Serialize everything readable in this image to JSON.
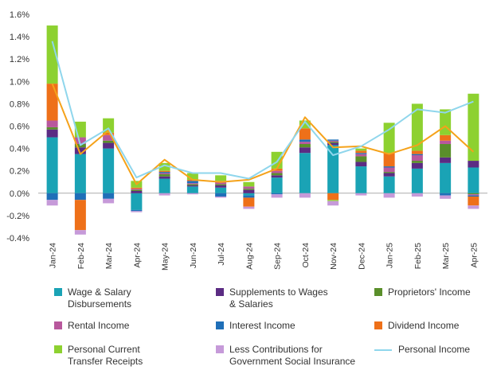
{
  "chart_data": {
    "type": "bar",
    "stacked": true,
    "title": "",
    "xlabel": "",
    "ylabel": "",
    "ylim": [
      -0.4,
      1.6
    ],
    "y_ticks": [
      -0.4,
      -0.2,
      0.0,
      0.2,
      0.4,
      0.6,
      0.8,
      1.0,
      1.2,
      1.4,
      1.6
    ],
    "y_tick_labels": [
      "-0.4%",
      "-0.2%",
      "0.0%",
      "0.2%",
      "0.4%",
      "0.6%",
      "0.8%",
      "1.0%",
      "1.2%",
      "1.4%",
      "1.6%"
    ],
    "categories": [
      "Jan-24",
      "Feb-24",
      "Mar-24",
      "Apr-24",
      "May-24",
      "Jun-24",
      "Jul-24",
      "Aug-24",
      "Sep-24",
      "Oct-24",
      "Nov-24",
      "Dec-24",
      "Jan-25",
      "Feb-25",
      "Mar-25",
      "Apr-25"
    ],
    "series": [
      {
        "name": "Wage & Salary Disbursements",
        "color": "#1aa3b5",
        "values": [
          0.5,
          0.35,
          0.4,
          -0.15,
          0.13,
          0.06,
          0.05,
          -0.02,
          0.14,
          0.36,
          0.43,
          0.24,
          0.15,
          0.22,
          0.27,
          0.23
        ]
      },
      {
        "name": "Supplements to Wages & Salaries",
        "color": "#5b2c83",
        "values": [
          0.07,
          0.06,
          0.05,
          0.02,
          0.02,
          0.01,
          0.02,
          0.03,
          0.02,
          0.05,
          0.02,
          0.04,
          0.03,
          0.05,
          0.05,
          0.06
        ]
      },
      {
        "name": "Proprietors' Income",
        "color": "#5a8f2b",
        "values": [
          0.02,
          0.03,
          0.02,
          0.01,
          0.02,
          0.01,
          0.01,
          0.01,
          0.02,
          0.03,
          0.01,
          0.05,
          0.01,
          0.02,
          0.12,
          -0.01
        ]
      },
      {
        "name": "Rental Income",
        "color": "#b8589d",
        "values": [
          0.06,
          0.06,
          0.05,
          0.01,
          0.01,
          0.01,
          0.02,
          0.02,
          0.02,
          0.02,
          0.01,
          0.02,
          0.04,
          0.05,
          0.03,
          -0.01
        ]
      },
      {
        "name": "Interest Income",
        "color": "#1f6fb8",
        "values": [
          -0.06,
          -0.06,
          -0.05,
          -0.01,
          0.01,
          0.02,
          -0.03,
          -0.02,
          -0.01,
          0.02,
          0.01,
          0.01,
          0.01,
          0.01,
          -0.02,
          -0.01
        ]
      },
      {
        "name": "Dividend Income",
        "color": "#ee7019",
        "values": [
          0.33,
          -0.27,
          0.02,
          0.01,
          0.01,
          0.01,
          0.01,
          -0.08,
          0.02,
          0.1,
          -0.06,
          0.02,
          0.12,
          0.03,
          0.05,
          -0.08
        ]
      },
      {
        "name": "Personal Current Transfer Receipts",
        "color": "#8dd130",
        "values": [
          0.52,
          0.14,
          0.13,
          0.06,
          0.07,
          0.06,
          0.05,
          0.04,
          0.15,
          0.07,
          -0.01,
          0.02,
          0.27,
          0.42,
          0.23,
          0.6
        ]
      },
      {
        "name": "Less Contributions for Government Social Insurance",
        "color": "#c69ad9",
        "values": [
          -0.05,
          -0.04,
          -0.04,
          -0.01,
          -0.02,
          -0.01,
          -0.01,
          -0.02,
          -0.03,
          -0.04,
          -0.04,
          -0.02,
          -0.04,
          -0.03,
          -0.03,
          -0.03
        ]
      }
    ],
    "lines": [
      {
        "name": "Personal Income",
        "color": "#8fd6ec",
        "values": [
          1.36,
          0.43,
          0.58,
          0.14,
          0.25,
          0.18,
          0.18,
          0.13,
          0.28,
          0.64,
          0.34,
          0.42,
          0.57,
          0.75,
          0.72,
          0.82
        ]
      },
      {
        "name": "",
        "color": "#f5a21a",
        "values": [
          0.98,
          0.35,
          0.56,
          0.08,
          0.3,
          0.12,
          0.1,
          0.12,
          0.22,
          0.68,
          0.41,
          0.42,
          0.35,
          0.43,
          0.6,
          0.37
        ]
      }
    ],
    "legend": [
      {
        "label": "Wage & Salary Disbursements",
        "kind": "swatch",
        "color": "#1aa3b5"
      },
      {
        "label": "Supplements to Wages & Salaries",
        "kind": "swatch",
        "color": "#5b2c83"
      },
      {
        "label": "Proprietors' Income",
        "kind": "swatch",
        "color": "#5a8f2b"
      },
      {
        "label": "Rental Income",
        "kind": "swatch",
        "color": "#b8589d"
      },
      {
        "label": "Interest Income",
        "kind": "swatch",
        "color": "#1f6fb8"
      },
      {
        "label": "Dividend Income",
        "kind": "swatch",
        "color": "#ee7019"
      },
      {
        "label": "Personal Current Transfer Receipts",
        "kind": "swatch",
        "color": "#8dd130"
      },
      {
        "label": "Less Contributions for Government Social Insurance",
        "kind": "swatch",
        "color": "#c69ad9"
      },
      {
        "label": "Personal Income",
        "kind": "line",
        "color": "#8fd6ec"
      }
    ],
    "grid": false,
    "legend_position": "bottom"
  }
}
